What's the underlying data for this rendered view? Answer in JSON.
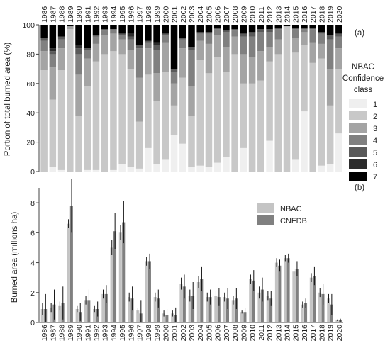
{
  "chart_data": [
    {
      "type": "bar",
      "stacked": true,
      "panel_label": "(a)",
      "ylabel": "Portion of total burned area (%)",
      "ylim": [
        0,
        100
      ],
      "yticks": [
        "0",
        "20",
        "40",
        "60",
        "80",
        "100"
      ],
      "categories": [
        "1986",
        "1987",
        "1988",
        "1989",
        "1990",
        "1991",
        "1992",
        "1993",
        "1994",
        "1995",
        "1996",
        "1997",
        "1998",
        "1999",
        "2000",
        "2001",
        "2002",
        "2003",
        "2004",
        "2005",
        "2006",
        "2007",
        "2008",
        "2009",
        "2010",
        "2011",
        "2012",
        "2013",
        "2014",
        "2015",
        "2016",
        "2017",
        "2018",
        "2019",
        "2020"
      ],
      "legend": {
        "title_lines": [
          "NBAC",
          "Confidence",
          "class"
        ],
        "position": "right"
      },
      "series": [
        {
          "name": "1",
          "color": "#efefef",
          "values": [
            0,
            3,
            1,
            0,
            0,
            1,
            1,
            0,
            1,
            5,
            3,
            2,
            16,
            5,
            8,
            25,
            19,
            3,
            4,
            3,
            6,
            10,
            0,
            16,
            0,
            0,
            21,
            0,
            0,
            8,
            41,
            0,
            4,
            5,
            26
          ]
        },
        {
          "name": "2",
          "color": "#c8c8c8",
          "values": [
            69,
            46,
            68,
            97,
            38,
            57,
            74,
            80,
            81,
            75,
            67,
            32,
            50,
            43,
            60,
            20,
            45,
            35,
            72,
            64,
            72,
            58,
            80,
            44,
            60,
            62,
            54,
            80,
            99,
            73,
            45,
            74,
            73,
            40,
            44
          ]
        },
        {
          "name": "3",
          "color": "#a4a4a4",
          "values": [
            13,
            22,
            15,
            2,
            28,
            19,
            12,
            13,
            12,
            10,
            13,
            30,
            18,
            19,
            20,
            15,
            20,
            20,
            13,
            20,
            15,
            17,
            12,
            20,
            18,
            20,
            10,
            10,
            0,
            10,
            9,
            14,
            10,
            25,
            14
          ]
        },
        {
          "name": "4",
          "color": "#808080",
          "values": [
            7,
            9,
            6,
            0,
            14,
            6,
            5,
            3,
            3,
            3,
            7,
            20,
            4,
            16,
            5,
            8,
            6,
            25,
            5,
            7,
            4,
            10,
            4,
            12,
            14,
            13,
            10,
            7,
            0,
            6,
            2,
            9,
            7,
            20,
            8
          ]
        },
        {
          "name": "5",
          "color": "#5a5a5a",
          "values": [
            2,
            2,
            2,
            0,
            4,
            1,
            1,
            1,
            0,
            1,
            2,
            2,
            1,
            3,
            1,
            2,
            1,
            2,
            1,
            1,
            1,
            1,
            1,
            2,
            3,
            2,
            2,
            1,
            0,
            1,
            1,
            1,
            1,
            3,
            2
          ]
        },
        {
          "name": "6",
          "color": "#2c2c2c",
          "values": [
            0,
            2,
            0,
            0,
            2,
            0,
            0,
            0,
            0,
            0,
            2,
            0,
            0,
            2,
            0,
            0,
            0,
            0,
            0,
            0,
            0,
            0,
            0,
            0,
            0,
            0,
            0,
            0,
            0,
            0,
            0,
            0,
            0,
            0,
            0
          ]
        },
        {
          "name": "7",
          "color": "#000000",
          "values": [
            9,
            16,
            8,
            1,
            14,
            16,
            7,
            3,
            3,
            6,
            6,
            14,
            11,
            12,
            6,
            30,
            9,
            15,
            5,
            5,
            2,
            4,
            3,
            6,
            5,
            3,
            3,
            2,
            1,
            2,
            2,
            2,
            5,
            7,
            6
          ]
        }
      ]
    },
    {
      "type": "bar",
      "grouped": true,
      "error_bars": true,
      "panel_label": "(b)",
      "ylabel": "Burned area (millions ha)",
      "ylim": [
        0,
        9
      ],
      "yticks": [
        "0",
        "2",
        "4",
        "6",
        "8"
      ],
      "categories": [
        "1986",
        "1987",
        "1988",
        "1989",
        "1990",
        "1991",
        "1992",
        "1993",
        "1994",
        "1995",
        "1996",
        "1997",
        "1998",
        "1999",
        "2000",
        "2001",
        "2002",
        "2003",
        "2004",
        "2005",
        "2006",
        "2007",
        "2008",
        "2009",
        "2010",
        "2011",
        "2012",
        "2013",
        "2014",
        "2015",
        "2016",
        "2017",
        "2018",
        "2019",
        "2020"
      ],
      "legend_position": "top-right",
      "series": [
        {
          "name": "NBAC",
          "color": "#c4c4c4",
          "values": [
            0.9,
            1.0,
            1.1,
            6.6,
            0.9,
            1.5,
            0.9,
            1.9,
            5.0,
            6.0,
            1.7,
            0.8,
            4.1,
            1.7,
            0.6,
            0.6,
            2.6,
            1.8,
            2.7,
            1.7,
            1.8,
            1.7,
            1.5,
            0.7,
            2.9,
            2.0,
            1.8,
            4.0,
            4.3,
            3.4,
            1.2,
            3.0,
            2.0,
            1.6,
            0.15
          ],
          "err": [
            0.4,
            0.3,
            0.3,
            0.3,
            0.2,
            0.3,
            0.2,
            0.3,
            0.5,
            0.5,
            0.3,
            0.2,
            0.3,
            0.3,
            0.2,
            0.2,
            0.4,
            0.4,
            0.4,
            0.3,
            0.3,
            0.3,
            0.3,
            0.1,
            0.3,
            0.4,
            0.3,
            0.3,
            0.2,
            0.2,
            0.2,
            0.3,
            0.3,
            0.3,
            0.05
          ]
        },
        {
          "name": "CNFDB",
          "color": "#808080",
          "values": [
            0.9,
            1.2,
            1.3,
            7.8,
            0.7,
            1.5,
            0.9,
            1.9,
            6.1,
            6.7,
            1.6,
            0.6,
            4.1,
            1.6,
            0.5,
            0.5,
            2.4,
            1.8,
            2.9,
            1.7,
            1.7,
            1.6,
            1.6,
            0.7,
            2.8,
            2.2,
            1.6,
            3.8,
            4.3,
            3.6,
            1.3,
            3.1,
            1.9,
            1.2,
            0.15
          ],
          "err": [
            1.0,
            1.0,
            1.1,
            1.8,
            0.6,
            0.7,
            0.5,
            0.6,
            1.2,
            1.4,
            0.8,
            0.9,
            0.5,
            0.6,
            0.4,
            0.5,
            0.8,
            0.9,
            0.8,
            0.5,
            0.6,
            0.7,
            0.7,
            0.3,
            0.7,
            0.8,
            0.5,
            0.4,
            0.3,
            0.5,
            0.3,
            0.6,
            0.7,
            0.7,
            0.1
          ]
        }
      ]
    }
  ]
}
